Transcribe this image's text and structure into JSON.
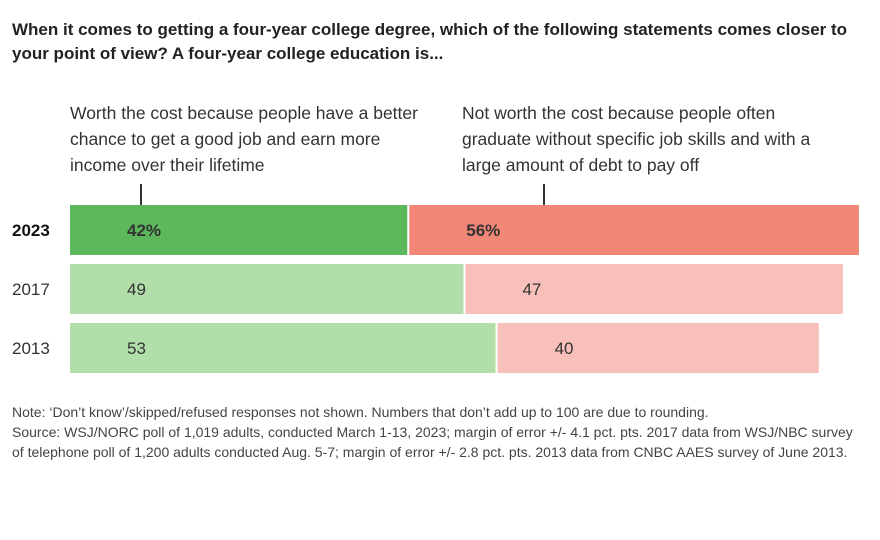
{
  "title": "When it comes to getting a four-year college degree, which of the following statements comes closer to your point of view? A four-year college education is...",
  "colors": {
    "worth_highlight": "#5cb85a",
    "worth_light": "#b2dea9",
    "not_worth_highlight": "#f28778",
    "not_worth_light": "#f7c0ba"
  },
  "note": "Note: ‘Don’t know’/skipped/refused responses not shown. Numbers that don’t add up to 100 are due to rounding.",
  "source": "Source: WSJ/NORC poll of 1,019 adults, conducted March 1-13, 2023; margin of error +/- 4.1 pct. pts. 2017 data from WSJ/NBC survey of telephone poll of 1,200 adults conducted Aug. 5-7; margin of error +/- 2.8 pct. pts. 2013 data from CNBC AAES survey of June 2013.",
  "chart_data": {
    "type": "bar",
    "orientation": "horizontal-stacked",
    "categories": [
      "2023",
      "2017",
      "2013"
    ],
    "highlight_category": "2023",
    "series": [
      {
        "name": "Worth the cost because people have a better chance to get a good job and earn more income over their lifetime",
        "values": [
          42,
          49,
          53
        ],
        "labels": [
          "42%",
          "49",
          "53"
        ]
      },
      {
        "name": "Not worth the cost because people often graduate without specific job skills and with a large amount of debt to pay off",
        "values": [
          56,
          47,
          40
        ],
        "labels": [
          "56%",
          "47",
          "40"
        ]
      }
    ],
    "xlim": [
      0,
      100
    ],
    "legend": "top, as column headers with leader lines"
  }
}
